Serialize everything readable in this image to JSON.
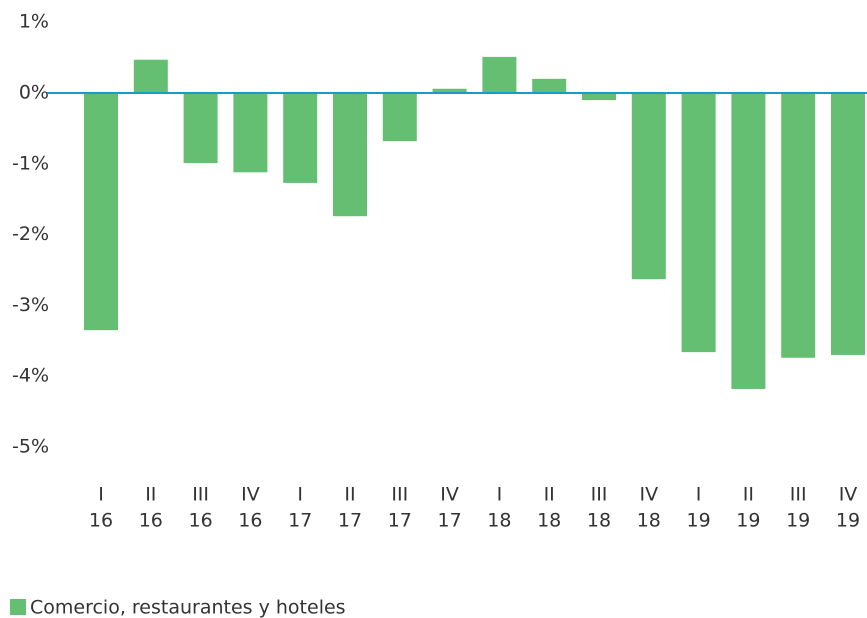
{
  "chart_data": {
    "type": "bar",
    "categories": [
      [
        "I",
        "16"
      ],
      [
        "II",
        "16"
      ],
      [
        "III",
        "16"
      ],
      [
        "IV",
        "16"
      ],
      [
        "I",
        "17"
      ],
      [
        "II",
        "17"
      ],
      [
        "III",
        "17"
      ],
      [
        "IV",
        "17"
      ],
      [
        "I",
        "18"
      ],
      [
        "II",
        "18"
      ],
      [
        "III",
        "18"
      ],
      [
        "IV",
        "18"
      ],
      [
        "I",
        "19"
      ],
      [
        "II",
        "19"
      ],
      [
        "III",
        "19"
      ],
      [
        "IV",
        "19"
      ]
    ],
    "series": [
      {
        "name": "Comercio, restaurantes y hoteles",
        "color": "#64bf72",
        "values": [
          -3.35,
          0.47,
          -0.99,
          -1.12,
          -1.27,
          -1.74,
          -0.68,
          0.06,
          0.51,
          0.2,
          -0.1,
          -2.63,
          -3.66,
          -4.18,
          -3.74,
          -3.7
        ]
      }
    ],
    "ylim": [
      -5,
      1
    ],
    "yticks": [
      {
        "value": 1,
        "label": "1%"
      },
      {
        "value": 0,
        "label": "0%"
      },
      {
        "value": -1,
        "label": "-1%"
      },
      {
        "value": -2,
        "label": "-2%"
      },
      {
        "value": -3,
        "label": "-3%"
      },
      {
        "value": -4,
        "label": "-4%"
      },
      {
        "value": -5,
        "label": "-5%"
      }
    ],
    "grid": false,
    "legend": "bottom-left"
  }
}
